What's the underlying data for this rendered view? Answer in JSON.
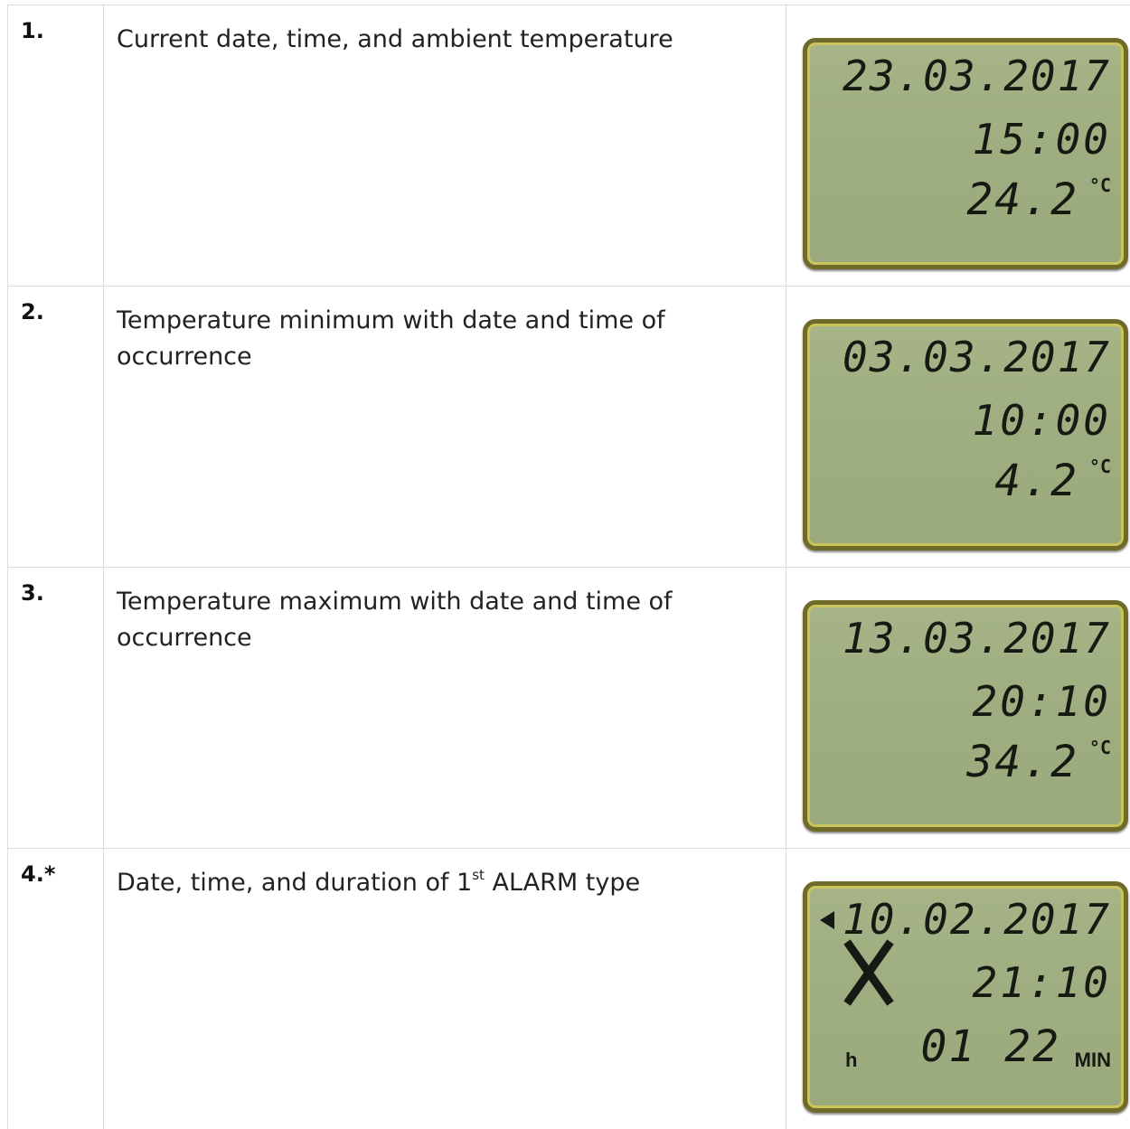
{
  "table": {
    "rows": [
      {
        "number": "1.",
        "description": {
          "text": "Current date, time, and ambient temperature"
        },
        "lcd": {
          "date": "23.03.2017",
          "time": "15:00",
          "value": "24.2",
          "unit": "°C"
        }
      },
      {
        "number": "2.",
        "description": {
          "text": "Temperature minimum with date and time of occurrence"
        },
        "lcd": {
          "date": "03.03.2017",
          "time": "10:00",
          "value": "4.2",
          "unit": "°C"
        }
      },
      {
        "number": "3.",
        "description": {
          "text": "Temperature maximum with date and time of occurrence"
        },
        "lcd": {
          "date": "13.03.2017",
          "time": "20:10",
          "value": "34.2",
          "unit": "°C"
        }
      },
      {
        "number": "4.*",
        "description": {
          "text": "Date, time, and duration of 1",
          "sup": "st",
          "after": " ALARM type"
        },
        "lcd": {
          "date": "10.02.2017",
          "time": "21:10",
          "prefix": "h",
          "value": "01 22",
          "unit": "MIN"
        }
      }
    ]
  }
}
